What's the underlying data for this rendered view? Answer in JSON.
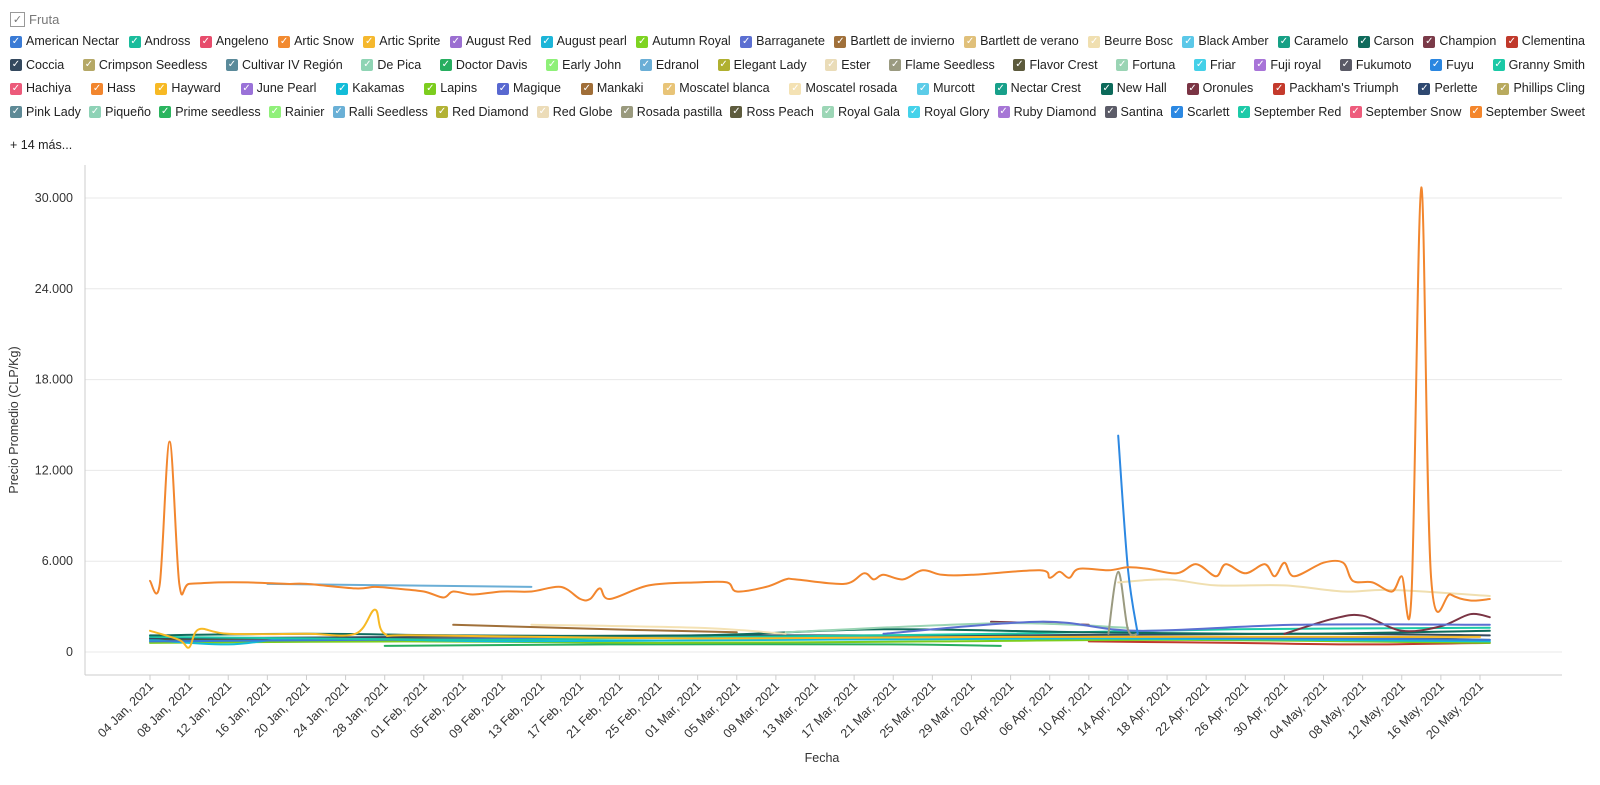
{
  "legend": {
    "title": "Fruta",
    "more_label": "+ 14 más...",
    "items": [
      {
        "name": "American Nectar",
        "color": "#3a7bd5"
      },
      {
        "name": "Andross",
        "color": "#1abc9c"
      },
      {
        "name": "Angeleno",
        "color": "#e74c6c"
      },
      {
        "name": "Artic Snow",
        "color": "#f28a30"
      },
      {
        "name": "Artic Sprite",
        "color": "#f5b82e"
      },
      {
        "name": "August Red",
        "color": "#9b6fd1"
      },
      {
        "name": "August pearl",
        "color": "#1cb5d8"
      },
      {
        "name": "Autumn Royal",
        "color": "#7ed321"
      },
      {
        "name": "Barraganete",
        "color": "#5b6fd1"
      },
      {
        "name": "Bartlett de invierno",
        "color": "#a0703a"
      },
      {
        "name": "Bartlett de verano",
        "color": "#e0c07a"
      },
      {
        "name": "Beurre Bosc",
        "color": "#f0dfb0"
      },
      {
        "name": "Black Amber",
        "color": "#5bc8e8"
      },
      {
        "name": "Caramelo",
        "color": "#16a085"
      },
      {
        "name": "Carson",
        "color": "#0f6b5c"
      },
      {
        "name": "Champion",
        "color": "#7a3a48"
      },
      {
        "name": "Clementina",
        "color": "#c0392b"
      },
      {
        "name": "Coccia",
        "color": "#34495e"
      },
      {
        "name": "Crimpson Seedless",
        "color": "#b5a866"
      },
      {
        "name": "Cultivar IV Región",
        "color": "#5a8a9a"
      },
      {
        "name": "De Pica",
        "color": "#8fd4b4"
      },
      {
        "name": "Doctor Davis",
        "color": "#27ae60"
      },
      {
        "name": "Early John",
        "color": "#8ef078"
      },
      {
        "name": "Edranol",
        "color": "#6aaed6"
      },
      {
        "name": "Elegant Lady",
        "color": "#b0b030"
      },
      {
        "name": "Ester",
        "color": "#eadcb8"
      },
      {
        "name": "Flame Seedless",
        "color": "#9a9a80"
      },
      {
        "name": "Flavor Crest",
        "color": "#5c5a3c"
      },
      {
        "name": "Fortuna",
        "color": "#9ad4b4"
      },
      {
        "name": "Friar",
        "color": "#44d0e8"
      },
      {
        "name": "Fuji royal",
        "color": "#a874d8"
      },
      {
        "name": "Fukumoto",
        "color": "#5a5a66"
      },
      {
        "name": "Fuyu",
        "color": "#2a86e0"
      },
      {
        "name": "Granny Smith",
        "color": "#1bc9a6"
      },
      {
        "name": "Hachiya",
        "color": "#ec5a7a"
      },
      {
        "name": "Hass",
        "color": "#f2862e"
      },
      {
        "name": "Hayward",
        "color": "#f7b924"
      },
      {
        "name": "June Pearl",
        "color": "#9a72d8"
      },
      {
        "name": "Kakamas",
        "color": "#12bcd8"
      },
      {
        "name": "Lapins",
        "color": "#7ccd1e"
      },
      {
        "name": "Magique",
        "color": "#5868d0"
      },
      {
        "name": "Mankaki",
        "color": "#a06e38"
      },
      {
        "name": "Moscatel blanca",
        "color": "#e8c478"
      },
      {
        "name": "Moscatel rosada",
        "color": "#f4e2b4"
      },
      {
        "name": "Murcott",
        "color": "#5ccce8"
      },
      {
        "name": "Nectar Crest",
        "color": "#18a08a"
      },
      {
        "name": "New Hall",
        "color": "#0c6a5a"
      },
      {
        "name": "Oronules",
        "color": "#7a3444"
      },
      {
        "name": "Packham's Triumph",
        "color": "#c43a2c"
      },
      {
        "name": "Perlette",
        "color": "#2e4870"
      },
      {
        "name": "Phillips Cling",
        "color": "#b8aa5e"
      },
      {
        "name": "Pink Lady",
        "color": "#5e8a96"
      },
      {
        "name": "Piqueño",
        "color": "#8ed2b6"
      },
      {
        "name": "Prime seedless",
        "color": "#2ab45e"
      },
      {
        "name": "Rainier",
        "color": "#90f07a"
      },
      {
        "name": "Ralli Seedless",
        "color": "#6ab0d6"
      },
      {
        "name": "Red Diamond",
        "color": "#b2b234"
      },
      {
        "name": "Red Globe",
        "color": "#ecdcb8"
      },
      {
        "name": "Rosada pastilla",
        "color": "#9a9a7e"
      },
      {
        "name": "Ross Peach",
        "color": "#5e5c3e"
      },
      {
        "name": "Royal Gala",
        "color": "#9cd6b6"
      },
      {
        "name": "Royal Glory",
        "color": "#44d2ea"
      },
      {
        "name": "Ruby Diamond",
        "color": "#a676d6"
      },
      {
        "name": "Santina",
        "color": "#5c5c68"
      },
      {
        "name": "Scarlett",
        "color": "#2c88e2"
      },
      {
        "name": "September Red",
        "color": "#1ccaa8"
      },
      {
        "name": "September Snow",
        "color": "#ee5c7c"
      },
      {
        "name": "September Sweet",
        "color": "#f4862c"
      }
    ]
  },
  "chart_data": {
    "type": "line",
    "xlabel": "Fecha",
    "ylabel": "Precio Promedio (CLP/Kg)",
    "ylim": [
      0,
      31500
    ],
    "yticks": [
      0,
      6000,
      12000,
      18000,
      24000,
      30000
    ],
    "ytick_labels": [
      "0",
      "6.000",
      "12.000",
      "18.000",
      "24.000",
      "30.000"
    ],
    "xlim": [
      "2021-01-01",
      "2021-05-24"
    ],
    "xticks": [
      "2021-01-04",
      "2021-01-08",
      "2021-01-12",
      "2021-01-16",
      "2021-01-20",
      "2021-01-24",
      "2021-01-28",
      "2021-02-01",
      "2021-02-05",
      "2021-02-09",
      "2021-02-13",
      "2021-02-17",
      "2021-02-21",
      "2021-02-25",
      "2021-03-01",
      "2021-03-05",
      "2021-03-09",
      "2021-03-13",
      "2021-03-17",
      "2021-03-21",
      "2021-03-25",
      "2021-03-29",
      "2021-04-02",
      "2021-04-06",
      "2021-04-10",
      "2021-04-14",
      "2021-04-18",
      "2021-04-22",
      "2021-04-26",
      "2021-04-30",
      "2021-05-04",
      "2021-05-08",
      "2021-05-12",
      "2021-05-16",
      "2021-05-20"
    ],
    "xtick_labels": [
      "04 Jan, 2021",
      "08 Jan, 2021",
      "12 Jan, 2021",
      "16 Jan, 2021",
      "20 Jan, 2021",
      "24 Jan, 2021",
      "28 Jan, 2021",
      "01 Feb, 2021",
      "05 Feb, 2021",
      "09 Feb, 2021",
      "13 Feb, 2021",
      "17 Feb, 2021",
      "21 Feb, 2021",
      "25 Feb, 2021",
      "01 Mar, 2021",
      "05 Mar, 2021",
      "09 Mar, 2021",
      "13 Mar, 2021",
      "17 Mar, 2021",
      "21 Mar, 2021",
      "25 Mar, 2021",
      "29 Mar, 2021",
      "02 Apr, 2021",
      "06 Apr, 2021",
      "10 Apr, 2021",
      "14 Apr, 2021",
      "18 Apr, 2021",
      "22 Apr, 2021",
      "26 Apr, 2021",
      "30 Apr, 2021",
      "04 May, 2021",
      "08 May, 2021",
      "12 May, 2021",
      "16 May, 2021",
      "20 May, 2021"
    ],
    "grid": "horizontal",
    "series": [
      {
        "name": "Hass",
        "color": "#f2862e",
        "x": [
          "2021-01-04",
          "2021-01-05",
          "2021-01-06",
          "2021-01-07",
          "2021-01-08",
          "2021-01-11",
          "2021-01-14",
          "2021-01-18",
          "2021-01-20",
          "2021-01-25",
          "2021-01-27",
          "2021-01-29",
          "2021-02-01",
          "2021-02-03",
          "2021-02-04",
          "2021-02-06",
          "2021-02-09",
          "2021-02-12",
          "2021-02-15",
          "2021-02-17",
          "2021-02-18",
          "2021-02-19",
          "2021-02-20",
          "2021-02-24",
          "2021-03-01",
          "2021-03-04",
          "2021-03-05",
          "2021-03-08",
          "2021-03-10",
          "2021-03-11",
          "2021-03-16",
          "2021-03-18",
          "2021-03-19",
          "2021-03-20",
          "2021-03-22",
          "2021-03-24",
          "2021-03-26",
          "2021-03-29",
          "2021-04-05",
          "2021-04-06",
          "2021-04-07",
          "2021-04-08",
          "2021-04-09",
          "2021-04-12",
          "2021-04-14",
          "2021-04-16",
          "2021-04-19",
          "2021-04-21",
          "2021-04-23",
          "2021-04-24",
          "2021-04-26",
          "2021-04-28",
          "2021-04-29",
          "2021-04-30",
          "2021-05-01",
          "2021-05-04",
          "2021-05-06",
          "2021-05-07",
          "2021-05-09",
          "2021-05-11",
          "2021-05-12",
          "2021-05-13",
          "2021-05-14",
          "2021-05-15",
          "2021-05-17",
          "2021-05-19",
          "2021-05-21"
        ],
        "y": [
          4700,
          4500,
          13900,
          4500,
          4500,
          4600,
          4600,
          4500,
          4500,
          4200,
          4300,
          4200,
          4000,
          3600,
          4000,
          3800,
          4000,
          4000,
          4300,
          3500,
          3500,
          4200,
          3500,
          4400,
          4600,
          4600,
          4000,
          4300,
          4800,
          4800,
          4500,
          5200,
          4800,
          5100,
          4800,
          5400,
          5100,
          5100,
          5400,
          4900,
          5300,
          4900,
          5500,
          5400,
          5600,
          5500,
          5200,
          5800,
          5000,
          5800,
          5200,
          5800,
          5000,
          5900,
          5000,
          5900,
          5900,
          4700,
          4600,
          4000,
          5000,
          3800,
          30700,
          4900,
          3800,
          3400,
          3500
        ]
      },
      {
        "name": "Scarlett",
        "color": "#2c88e2",
        "x": [
          "2021-04-13",
          "2021-04-14",
          "2021-04-15"
        ],
        "y": [
          14300,
          5500,
          1200
        ]
      },
      {
        "name": "Edranol",
        "color": "#6aaed6",
        "x": [
          "2021-01-16",
          "2021-02-12"
        ],
        "y": [
          4500,
          4300
        ]
      },
      {
        "name": "Beurre Bosc",
        "color": "#f0dfb0",
        "x": [
          "2021-04-13",
          "2021-04-18",
          "2021-04-23",
          "2021-04-30",
          "2021-05-06",
          "2021-05-11",
          "2021-05-21"
        ],
        "y": [
          4600,
          4800,
          4400,
          4400,
          4000,
          4100,
          3700
        ]
      },
      {
        "name": "Flame Seedless",
        "color": "#9a9a80",
        "x": [
          "2021-04-12",
          "2021-04-13",
          "2021-04-14",
          "2021-04-15"
        ],
        "y": [
          1200,
          5300,
          1500,
          1200
        ]
      },
      {
        "name": "Hayward",
        "color": "#f7b924",
        "x": [
          "2021-01-04",
          "2021-01-07",
          "2021-01-08",
          "2021-01-09",
          "2021-01-12",
          "2021-01-20",
          "2021-01-25",
          "2021-01-27",
          "2021-01-28",
          "2021-02-01",
          "2021-03-01",
          "2021-04-01",
          "2021-05-20"
        ],
        "y": [
          1400,
          800,
          300,
          1500,
          1200,
          1200,
          1200,
          2800,
          1200,
          1100,
          900,
          1000,
          1000
        ]
      },
      {
        "name": "Barraganete",
        "color": "#5b6fd1",
        "x": [
          "2021-03-20",
          "2021-04-05",
          "2021-04-15",
          "2021-05-01",
          "2021-05-21"
        ],
        "y": [
          1200,
          2000,
          1400,
          1800,
          1800
        ]
      },
      {
        "name": "Oronules",
        "color": "#7a3444",
        "x": [
          "2021-04-30",
          "2021-05-05",
          "2021-05-08",
          "2021-05-12",
          "2021-05-16",
          "2021-05-19",
          "2021-05-21"
        ],
        "y": [
          1200,
          2200,
          2400,
          1400,
          1700,
          2500,
          2300
        ]
      },
      {
        "name": "Bartlett de invierno",
        "color": "#a0703a",
        "x": [
          "2021-02-04",
          "2021-02-20",
          "2021-03-05"
        ],
        "y": [
          1800,
          1500,
          1300
        ]
      },
      {
        "name": "Moscatel rosada",
        "color": "#f4e2b4",
        "x": [
          "2021-02-12",
          "2021-03-01",
          "2021-03-10"
        ],
        "y": [
          1800,
          1600,
          1200
        ]
      },
      {
        "name": "Fortuna",
        "color": "#9ad4b4",
        "x": [
          "2021-03-10",
          "2021-04-01",
          "2021-04-14"
        ],
        "y": [
          1300,
          1900,
          1600
        ]
      },
      {
        "name": "Champion",
        "color": "#7a3a48",
        "x": [
          "2021-03-31",
          "2021-04-10"
        ],
        "y": [
          2000,
          1800
        ]
      },
      {
        "name": "Carson",
        "color": "#0f6b5c",
        "x": [
          "2021-01-04",
          "2021-01-20",
          "2021-02-05",
          "2021-03-01",
          "2021-03-20",
          "2021-04-10",
          "2021-05-01",
          "2021-05-21"
        ],
        "y": [
          1100,
          1200,
          1100,
          1100,
          1500,
          1300,
          1200,
          1400
        ]
      },
      {
        "name": "Granny Smith",
        "color": "#1bc9a6",
        "x": [
          "2021-01-04",
          "2021-01-20",
          "2021-02-10",
          "2021-03-05",
          "2021-04-01",
          "2021-04-25",
          "2021-05-21"
        ],
        "y": [
          1000,
          900,
          800,
          1000,
          1200,
          1500,
          1600
        ]
      },
      {
        "name": "Coccia",
        "color": "#34495e",
        "x": [
          "2021-01-04",
          "2021-02-01",
          "2021-03-01",
          "2021-04-01",
          "2021-05-01",
          "2021-05-21"
        ],
        "y": [
          900,
          1000,
          1100,
          1100,
          1200,
          1100
        ]
      },
      {
        "name": "American Nectar",
        "color": "#3a7bd5",
        "x": [
          "2021-01-04",
          "2021-01-25",
          "2021-02-20",
          "2021-03-15",
          "2021-04-10",
          "2021-05-05",
          "2021-05-21"
        ],
        "y": [
          700,
          800,
          900,
          1000,
          1000,
          900,
          800
        ]
      },
      {
        "name": "Kakamas",
        "color": "#12bcd8",
        "x": [
          "2021-01-04",
          "2021-01-12",
          "2021-01-20",
          "2021-02-10",
          "2021-03-10",
          "2021-04-10",
          "2021-05-21"
        ],
        "y": [
          800,
          500,
          900,
          700,
          800,
          900,
          700
        ]
      },
      {
        "name": "Lapins",
        "color": "#7ccd1e",
        "x": [
          "2021-01-04",
          "2021-01-30",
          "2021-02-25",
          "2021-03-25",
          "2021-04-20",
          "2021-05-21"
        ],
        "y": [
          600,
          700,
          600,
          700,
          800,
          600
        ]
      },
      {
        "name": "Clementina",
        "color": "#c0392b",
        "x": [
          "2021-04-10",
          "2021-04-25",
          "2021-05-08",
          "2021-05-21"
        ],
        "y": [
          700,
          600,
          500,
          600
        ]
      },
      {
        "name": "Doctor Davis",
        "color": "#27ae60",
        "x": [
          "2021-01-28",
          "2021-02-20",
          "2021-03-20",
          "2021-04-01"
        ],
        "y": [
          400,
          500,
          500,
          400
        ]
      },
      {
        "name": "Flavor Crest",
        "color": "#5c5a3c",
        "x": [
          "2021-01-04",
          "2021-02-15",
          "2021-03-25",
          "2021-05-10",
          "2021-05-21"
        ],
        "y": [
          800,
          900,
          1000,
          900,
          800
        ]
      }
    ]
  }
}
